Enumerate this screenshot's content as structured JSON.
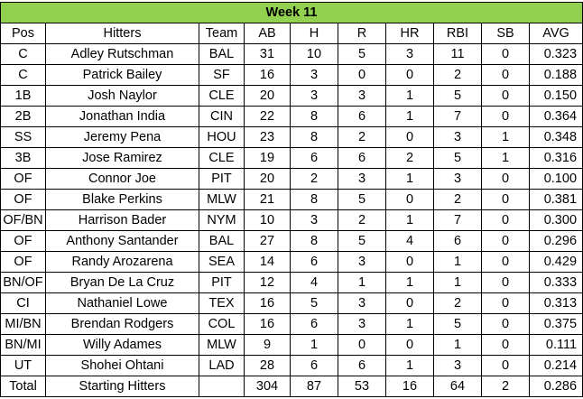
{
  "title": "Week 11",
  "title_bg": "#92d050",
  "columns": [
    "Pos",
    "Hitters",
    "Team",
    "AB",
    "H",
    "R",
    "HR",
    "RBI",
    "SB",
    "AVG"
  ],
  "rows": [
    [
      "C",
      "Adley Rutschman",
      "BAL",
      "31",
      "10",
      "5",
      "3",
      "11",
      "0",
      "0.323"
    ],
    [
      "C",
      "Patrick Bailey",
      "SF",
      "16",
      "3",
      "0",
      "0",
      "2",
      "0",
      "0.188"
    ],
    [
      "1B",
      "Josh Naylor",
      "CLE",
      "20",
      "3",
      "3",
      "1",
      "5",
      "0",
      "0.150"
    ],
    [
      "2B",
      "Jonathan India",
      "CIN",
      "22",
      "8",
      "6",
      "1",
      "7",
      "0",
      "0.364"
    ],
    [
      "SS",
      "Jeremy Pena",
      "HOU",
      "23",
      "8",
      "2",
      "0",
      "3",
      "1",
      "0.348"
    ],
    [
      "3B",
      "Jose Ramirez",
      "CLE",
      "19",
      "6",
      "6",
      "2",
      "5",
      "1",
      "0.316"
    ],
    [
      "OF",
      "Connor Joe",
      "PIT",
      "20",
      "2",
      "3",
      "1",
      "3",
      "0",
      "0.100"
    ],
    [
      "OF",
      "Blake Perkins",
      "MLW",
      "21",
      "8",
      "5",
      "0",
      "2",
      "0",
      "0.381"
    ],
    [
      "OF/BN",
      "Harrison Bader",
      "NYM",
      "10",
      "3",
      "2",
      "1",
      "7",
      "0",
      "0.300"
    ],
    [
      "OF",
      "Anthony Santander",
      "BAL",
      "27",
      "8",
      "5",
      "4",
      "6",
      "0",
      "0.296"
    ],
    [
      "OF",
      "Randy Arozarena",
      "SEA",
      "14",
      "6",
      "3",
      "0",
      "1",
      "0",
      "0.429"
    ],
    [
      "BN/OF",
      "Bryan De La Cruz",
      "PIT",
      "12",
      "4",
      "1",
      "1",
      "1",
      "0",
      "0.333"
    ],
    [
      "CI",
      "Nathaniel Lowe",
      "TEX",
      "16",
      "5",
      "3",
      "0",
      "2",
      "0",
      "0.313"
    ],
    [
      "MI/BN",
      "Brendan Rodgers",
      "COL",
      "16",
      "6",
      "3",
      "1",
      "5",
      "0",
      "0.375"
    ],
    [
      "BN/MI",
      "Willy Adames",
      "MLW",
      "9",
      "1",
      "0",
      "0",
      "1",
      "0",
      "0.111"
    ],
    [
      "UT",
      "Shohei Ohtani",
      "LAD",
      "28",
      "6",
      "6",
      "1",
      "3",
      "0",
      "0.214"
    ]
  ],
  "total": [
    "Total",
    "Starting Hitters",
    "",
    "304",
    "87",
    "53",
    "16",
    "64",
    "2",
    "0.286"
  ]
}
